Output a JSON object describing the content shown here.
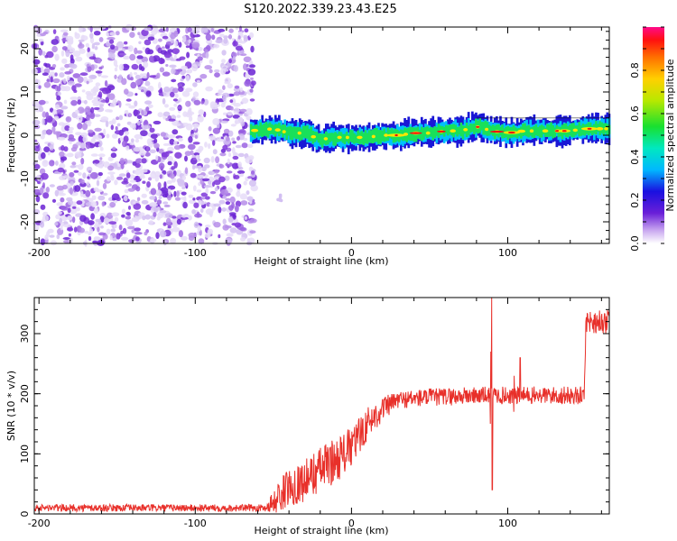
{
  "page_title": "S120.2022.339.23.43.E25",
  "colors": {
    "snr_line": "#e8302a",
    "noise": "#7a2ee0",
    "signal_low": "#1a17d6",
    "signal_mid": "#19e05a",
    "signal_high": "#ee1111"
  },
  "chart_data": [
    {
      "type": "heatmap",
      "title": "S120.2022.339.23.43.E25",
      "xlabel": "Height of straight line (km)",
      "ylabel": "Frequency (Hz)",
      "xlim": [
        -203,
        165
      ],
      "ylim": [
        -25,
        25
      ],
      "x_ticks": [
        -200,
        -100,
        0,
        100
      ],
      "y_ticks": [
        -20,
        -10,
        0,
        10,
        20
      ],
      "colorbar": {
        "label": "Normalized spectral amplitude",
        "range": [
          0,
          1
        ],
        "ticks": [
          "0.0",
          "0.2",
          "0.4",
          "0.6",
          "0.8"
        ],
        "colormap": "rainbow"
      },
      "noise_region_x": [
        -203,
        -62
      ],
      "signal_band": {
        "x": [
          -65,
          -50,
          -40,
          -30,
          -20,
          -10,
          0,
          10,
          20,
          30,
          40,
          50,
          60,
          70,
          80,
          90,
          100,
          110,
          120,
          130,
          140,
          150,
          165
        ],
        "freq": [
          1,
          1.5,
          0.5,
          0.5,
          -1,
          -0.5,
          -0.5,
          -0.5,
          0,
          0,
          0.5,
          0.5,
          1,
          1,
          2,
          1,
          0.5,
          1,
          1,
          1,
          1,
          1.5,
          1.5
        ]
      }
    },
    {
      "type": "line",
      "xlabel": "Height of straight line (km)",
      "ylabel": "SNR (10 * v/v)",
      "xlim": [
        -203,
        165
      ],
      "ylim": [
        0,
        360
      ],
      "x_ticks": [
        -200,
        -100,
        0,
        100
      ],
      "y_ticks": [
        0,
        100,
        200,
        300
      ],
      "envelope": {
        "x": [
          -203,
          -55,
          -50,
          -40,
          -30,
          -20,
          -10,
          0,
          10,
          20,
          30,
          40,
          50,
          60,
          70,
          80,
          90,
          100,
          110,
          120,
          130,
          140,
          149,
          150,
          165
        ],
        "mean": [
          10,
          10,
          20,
          45,
          55,
          75,
          90,
          110,
          150,
          175,
          190,
          192,
          194,
          195,
          196,
          197,
          197,
          197,
          197,
          197,
          197,
          197,
          197,
          320,
          320
        ],
        "noise": [
          6,
          6,
          25,
          32,
          35,
          38,
          38,
          35,
          28,
          20,
          15,
          15,
          15,
          15,
          15,
          15,
          15,
          15,
          15,
          15,
          15,
          15,
          15,
          20,
          20
        ]
      },
      "spikes": [
        {
          "x": 90,
          "min": 40,
          "max": 360
        },
        {
          "x": 89,
          "min": 150,
          "max": 270
        },
        {
          "x": 108,
          "min": 140,
          "max": 260
        },
        {
          "x": 104,
          "min": 170,
          "max": 230
        }
      ]
    }
  ]
}
